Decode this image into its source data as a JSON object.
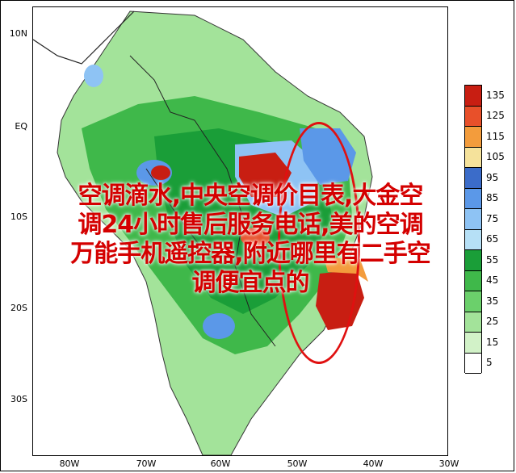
{
  "map": {
    "y_ticks": [
      "10N",
      "EQ",
      "10S",
      "20S",
      "30S"
    ],
    "x_ticks": [
      "80W",
      "70W",
      "60W",
      "50W",
      "40W",
      "30W"
    ]
  },
  "legend": {
    "levels": [
      "135",
      "125",
      "115",
      "105",
      "95",
      "85",
      "75",
      "65",
      "55",
      "45",
      "35",
      "25",
      "15",
      "5"
    ],
    "colors": [
      "#c81e12",
      "#e8502a",
      "#f39c3c",
      "#f5e29b",
      "#3b6cc9",
      "#5b98e8",
      "#8ec3f4",
      "#b6e0f6",
      "#1a9e38",
      "#3fb84a",
      "#6bd06b",
      "#a3e39a",
      "#d2f2c8",
      "#ffffff"
    ]
  },
  "overlay": {
    "lines": [
      "空调滴水,中央空调价目表,大金空",
      "调24小时售后服务电话,美的空调",
      "万能手机遥控器,附近哪里有二手空",
      "调便宜点的"
    ]
  }
}
